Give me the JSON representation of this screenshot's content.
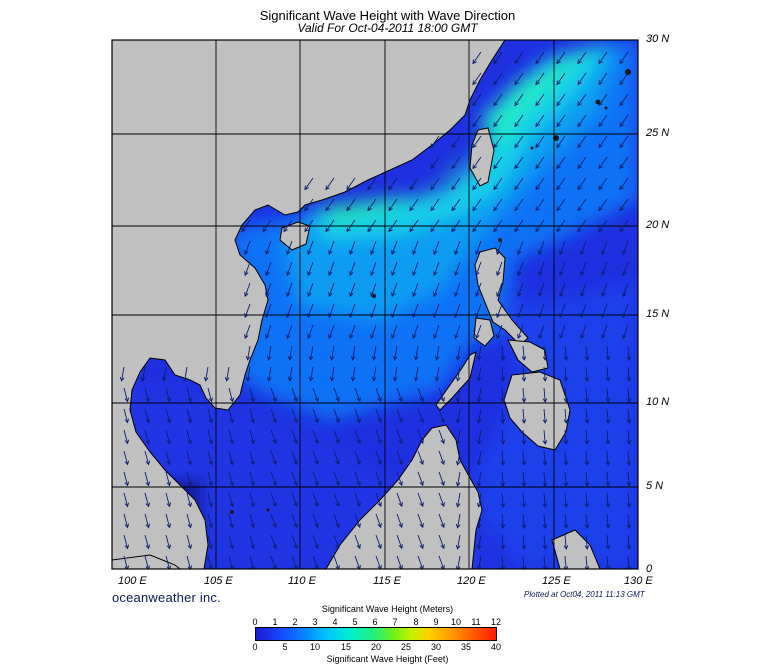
{
  "title": "Significant Wave Height with Wave Direction",
  "valid": "Valid For Oct-04-2011 18:00 GMT",
  "lat_labels": [
    "30 N",
    "25 N",
    "20 N",
    "15 N",
    "10 N",
    "5 N",
    "0"
  ],
  "lon_labels": [
    "100 E",
    "105 E",
    "110 E",
    "115 E",
    "120 E",
    "125 E",
    "130 E"
  ],
  "brand": "oceanweather inc.",
  "plotted": "Plotted at Oct04, 2011 11:13 GMT",
  "colorbar": {
    "meters_title": "Significant Wave Height (Meters)",
    "meters_ticks": [
      "0",
      "1",
      "2",
      "3",
      "4",
      "5",
      "6",
      "7",
      "8",
      "9",
      "10",
      "11",
      "12"
    ],
    "feet_title": "Significant Wave Height (Feet)",
    "feet_ticks": [
      "0",
      "5",
      "10",
      "15",
      "20",
      "25",
      "30",
      "35",
      "40"
    ]
  },
  "colors": {
    "land": "#c0c0c0",
    "sea_deep": "#1f2ee0",
    "sea_mid": "#1a5cf0",
    "sea_high": "#0aa8f0",
    "sea_peak": "#1ef0b0"
  }
}
